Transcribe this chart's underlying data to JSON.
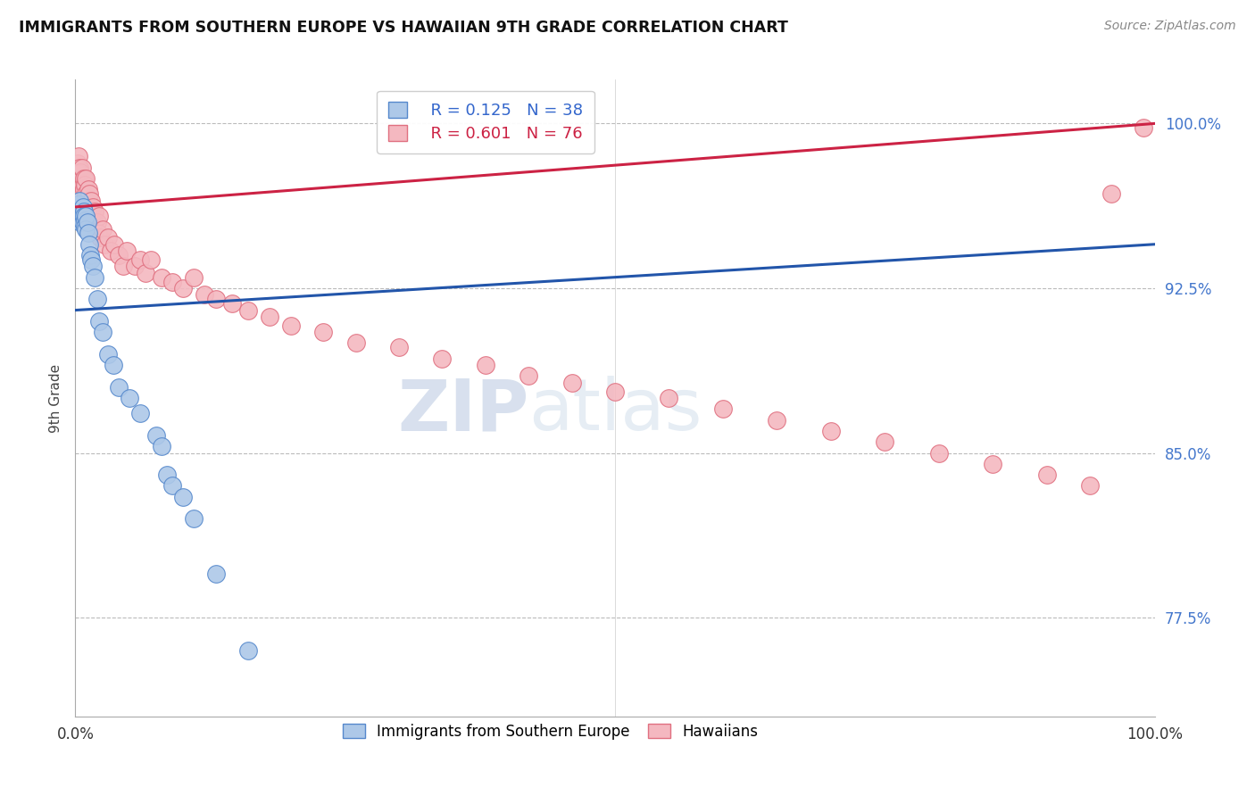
{
  "title": "IMMIGRANTS FROM SOUTHERN EUROPE VS HAWAIIAN 9TH GRADE CORRELATION CHART",
  "source_text": "Source: ZipAtlas.com",
  "ylabel": "9th Grade",
  "xlim": [
    0.0,
    1.0
  ],
  "ylim": [
    0.73,
    1.02
  ],
  "yticks": [
    0.775,
    0.85,
    0.925,
    1.0
  ],
  "ytick_labels": [
    "77.5%",
    "85.0%",
    "92.5%",
    "100.0%"
  ],
  "xtick_labels": [
    "0.0%",
    "100.0%"
  ],
  "xticks": [
    0.0,
    1.0
  ],
  "blue_color": "#adc8e8",
  "blue_edge": "#5588cc",
  "pink_color": "#f4b8c0",
  "pink_edge": "#e07080",
  "blue_line_color": "#2255aa",
  "pink_line_color": "#cc2244",
  "legend_r_blue": "R = 0.125",
  "legend_n_blue": "N = 38",
  "legend_r_pink": "R = 0.601",
  "legend_n_pink": "N = 76",
  "watermark_zip": "ZIP",
  "watermark_atlas": "atlas",
  "blue_x": [
    0.002,
    0.003,
    0.004,
    0.004,
    0.005,
    0.005,
    0.006,
    0.007,
    0.007,
    0.008,
    0.008,
    0.009,
    0.009,
    0.01,
    0.01,
    0.011,
    0.012,
    0.013,
    0.014,
    0.015,
    0.016,
    0.018,
    0.02,
    0.022,
    0.025,
    0.03,
    0.035,
    0.04,
    0.05,
    0.06,
    0.075,
    0.08,
    0.085,
    0.09,
    0.1,
    0.11,
    0.13,
    0.16
  ],
  "blue_y": [
    0.96,
    0.963,
    0.958,
    0.965,
    0.96,
    0.955,
    0.958,
    0.962,
    0.955,
    0.96,
    0.958,
    0.956,
    0.953,
    0.958,
    0.952,
    0.955,
    0.95,
    0.945,
    0.94,
    0.938,
    0.935,
    0.93,
    0.92,
    0.91,
    0.905,
    0.895,
    0.89,
    0.88,
    0.875,
    0.868,
    0.858,
    0.853,
    0.84,
    0.835,
    0.83,
    0.82,
    0.795,
    0.76
  ],
  "pink_x": [
    0.001,
    0.002,
    0.002,
    0.003,
    0.003,
    0.004,
    0.004,
    0.005,
    0.005,
    0.006,
    0.006,
    0.007,
    0.007,
    0.008,
    0.008,
    0.009,
    0.009,
    0.01,
    0.01,
    0.011,
    0.012,
    0.012,
    0.013,
    0.013,
    0.014,
    0.015,
    0.015,
    0.016,
    0.017,
    0.018,
    0.019,
    0.02,
    0.021,
    0.022,
    0.023,
    0.025,
    0.027,
    0.03,
    0.033,
    0.036,
    0.04,
    0.044,
    0.048,
    0.055,
    0.06,
    0.065,
    0.07,
    0.08,
    0.09,
    0.1,
    0.11,
    0.12,
    0.13,
    0.145,
    0.16,
    0.18,
    0.2,
    0.23,
    0.26,
    0.3,
    0.34,
    0.38,
    0.42,
    0.46,
    0.5,
    0.55,
    0.6,
    0.65,
    0.7,
    0.75,
    0.8,
    0.85,
    0.9,
    0.94,
    0.96,
    0.99
  ],
  "pink_y": [
    0.98,
    0.975,
    0.982,
    0.978,
    0.985,
    0.975,
    0.98,
    0.972,
    0.978,
    0.975,
    0.98,
    0.972,
    0.968,
    0.975,
    0.97,
    0.965,
    0.972,
    0.968,
    0.975,
    0.965,
    0.97,
    0.965,
    0.962,
    0.968,
    0.96,
    0.965,
    0.958,
    0.962,
    0.955,
    0.96,
    0.952,
    0.955,
    0.95,
    0.958,
    0.948,
    0.952,
    0.945,
    0.948,
    0.942,
    0.945,
    0.94,
    0.935,
    0.942,
    0.935,
    0.938,
    0.932,
    0.938,
    0.93,
    0.928,
    0.925,
    0.93,
    0.922,
    0.92,
    0.918,
    0.915,
    0.912,
    0.908,
    0.905,
    0.9,
    0.898,
    0.893,
    0.89,
    0.885,
    0.882,
    0.878,
    0.875,
    0.87,
    0.865,
    0.86,
    0.855,
    0.85,
    0.845,
    0.84,
    0.835,
    0.968,
    0.998
  ]
}
